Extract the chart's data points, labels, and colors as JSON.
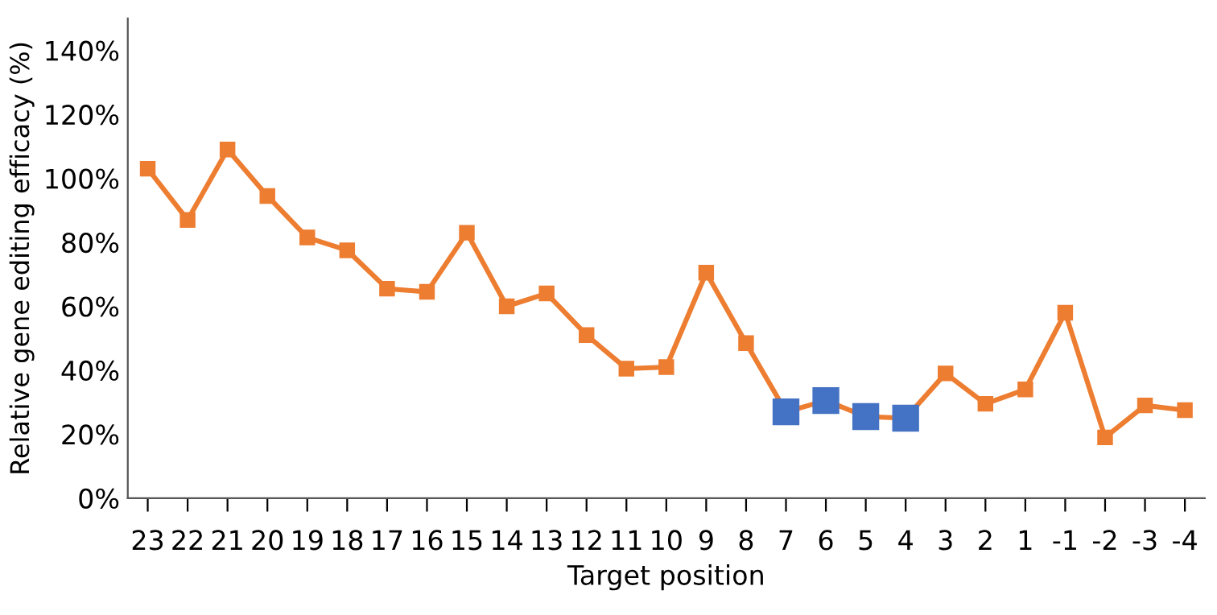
{
  "chart_data": {
    "type": "line",
    "xlabel": "Target position",
    "ylabel": "Relative gene editing efficacy (%)",
    "categories": [
      "23",
      "22",
      "21",
      "20",
      "19",
      "18",
      "17",
      "16",
      "15",
      "14",
      "13",
      "12",
      "11",
      "10",
      "9",
      "8",
      "7",
      "6",
      "5",
      "4",
      "3",
      "2",
      "1",
      "-1",
      "-2",
      "-3",
      "-4"
    ],
    "series": [
      {
        "color": "#ed7d31",
        "colors": [
          "#ed7d31",
          "#ed7d31",
          "#ed7d31",
          "#ed7d31",
          "#ed7d31",
          "#ed7d31",
          "#ed7d31",
          "#ed7d31",
          "#ed7d31",
          "#ed7d31",
          "#ed7d31",
          "#ed7d31",
          "#ed7d31",
          "#ed7d31",
          "#ed7d31",
          "#ed7d31",
          "#4472c4",
          "#4472c4",
          "#4472c4",
          "#4472c4",
          "#ed7d31",
          "#ed7d31",
          "#ed7d31",
          "#ed7d31",
          "#ed7d31",
          "#ed7d31",
          "#ed7d31"
        ],
        "values": [
          103,
          87,
          109,
          94.5,
          81.5,
          77.5,
          65.5,
          64.5,
          83,
          60,
          64,
          51,
          40.5,
          41,
          70.5,
          48.5,
          27,
          30.5,
          25.5,
          25,
          39,
          29.5,
          34,
          58,
          19,
          29,
          27.5
        ]
      }
    ],
    "ylim": [
      0,
      150
    ],
    "yticks": [
      {
        "value": 0,
        "label": "0%"
      },
      {
        "value": 20,
        "label": "20%"
      },
      {
        "value": 40,
        "label": "40%"
      },
      {
        "value": 60,
        "label": "60%"
      },
      {
        "value": 80,
        "label": "80%"
      },
      {
        "value": 100,
        "label": "100%"
      },
      {
        "value": 120,
        "label": "120%"
      },
      {
        "value": 140,
        "label": "140%"
      }
    ],
    "marker": "square",
    "line_style": "solid",
    "grid": false,
    "legend": false
  }
}
